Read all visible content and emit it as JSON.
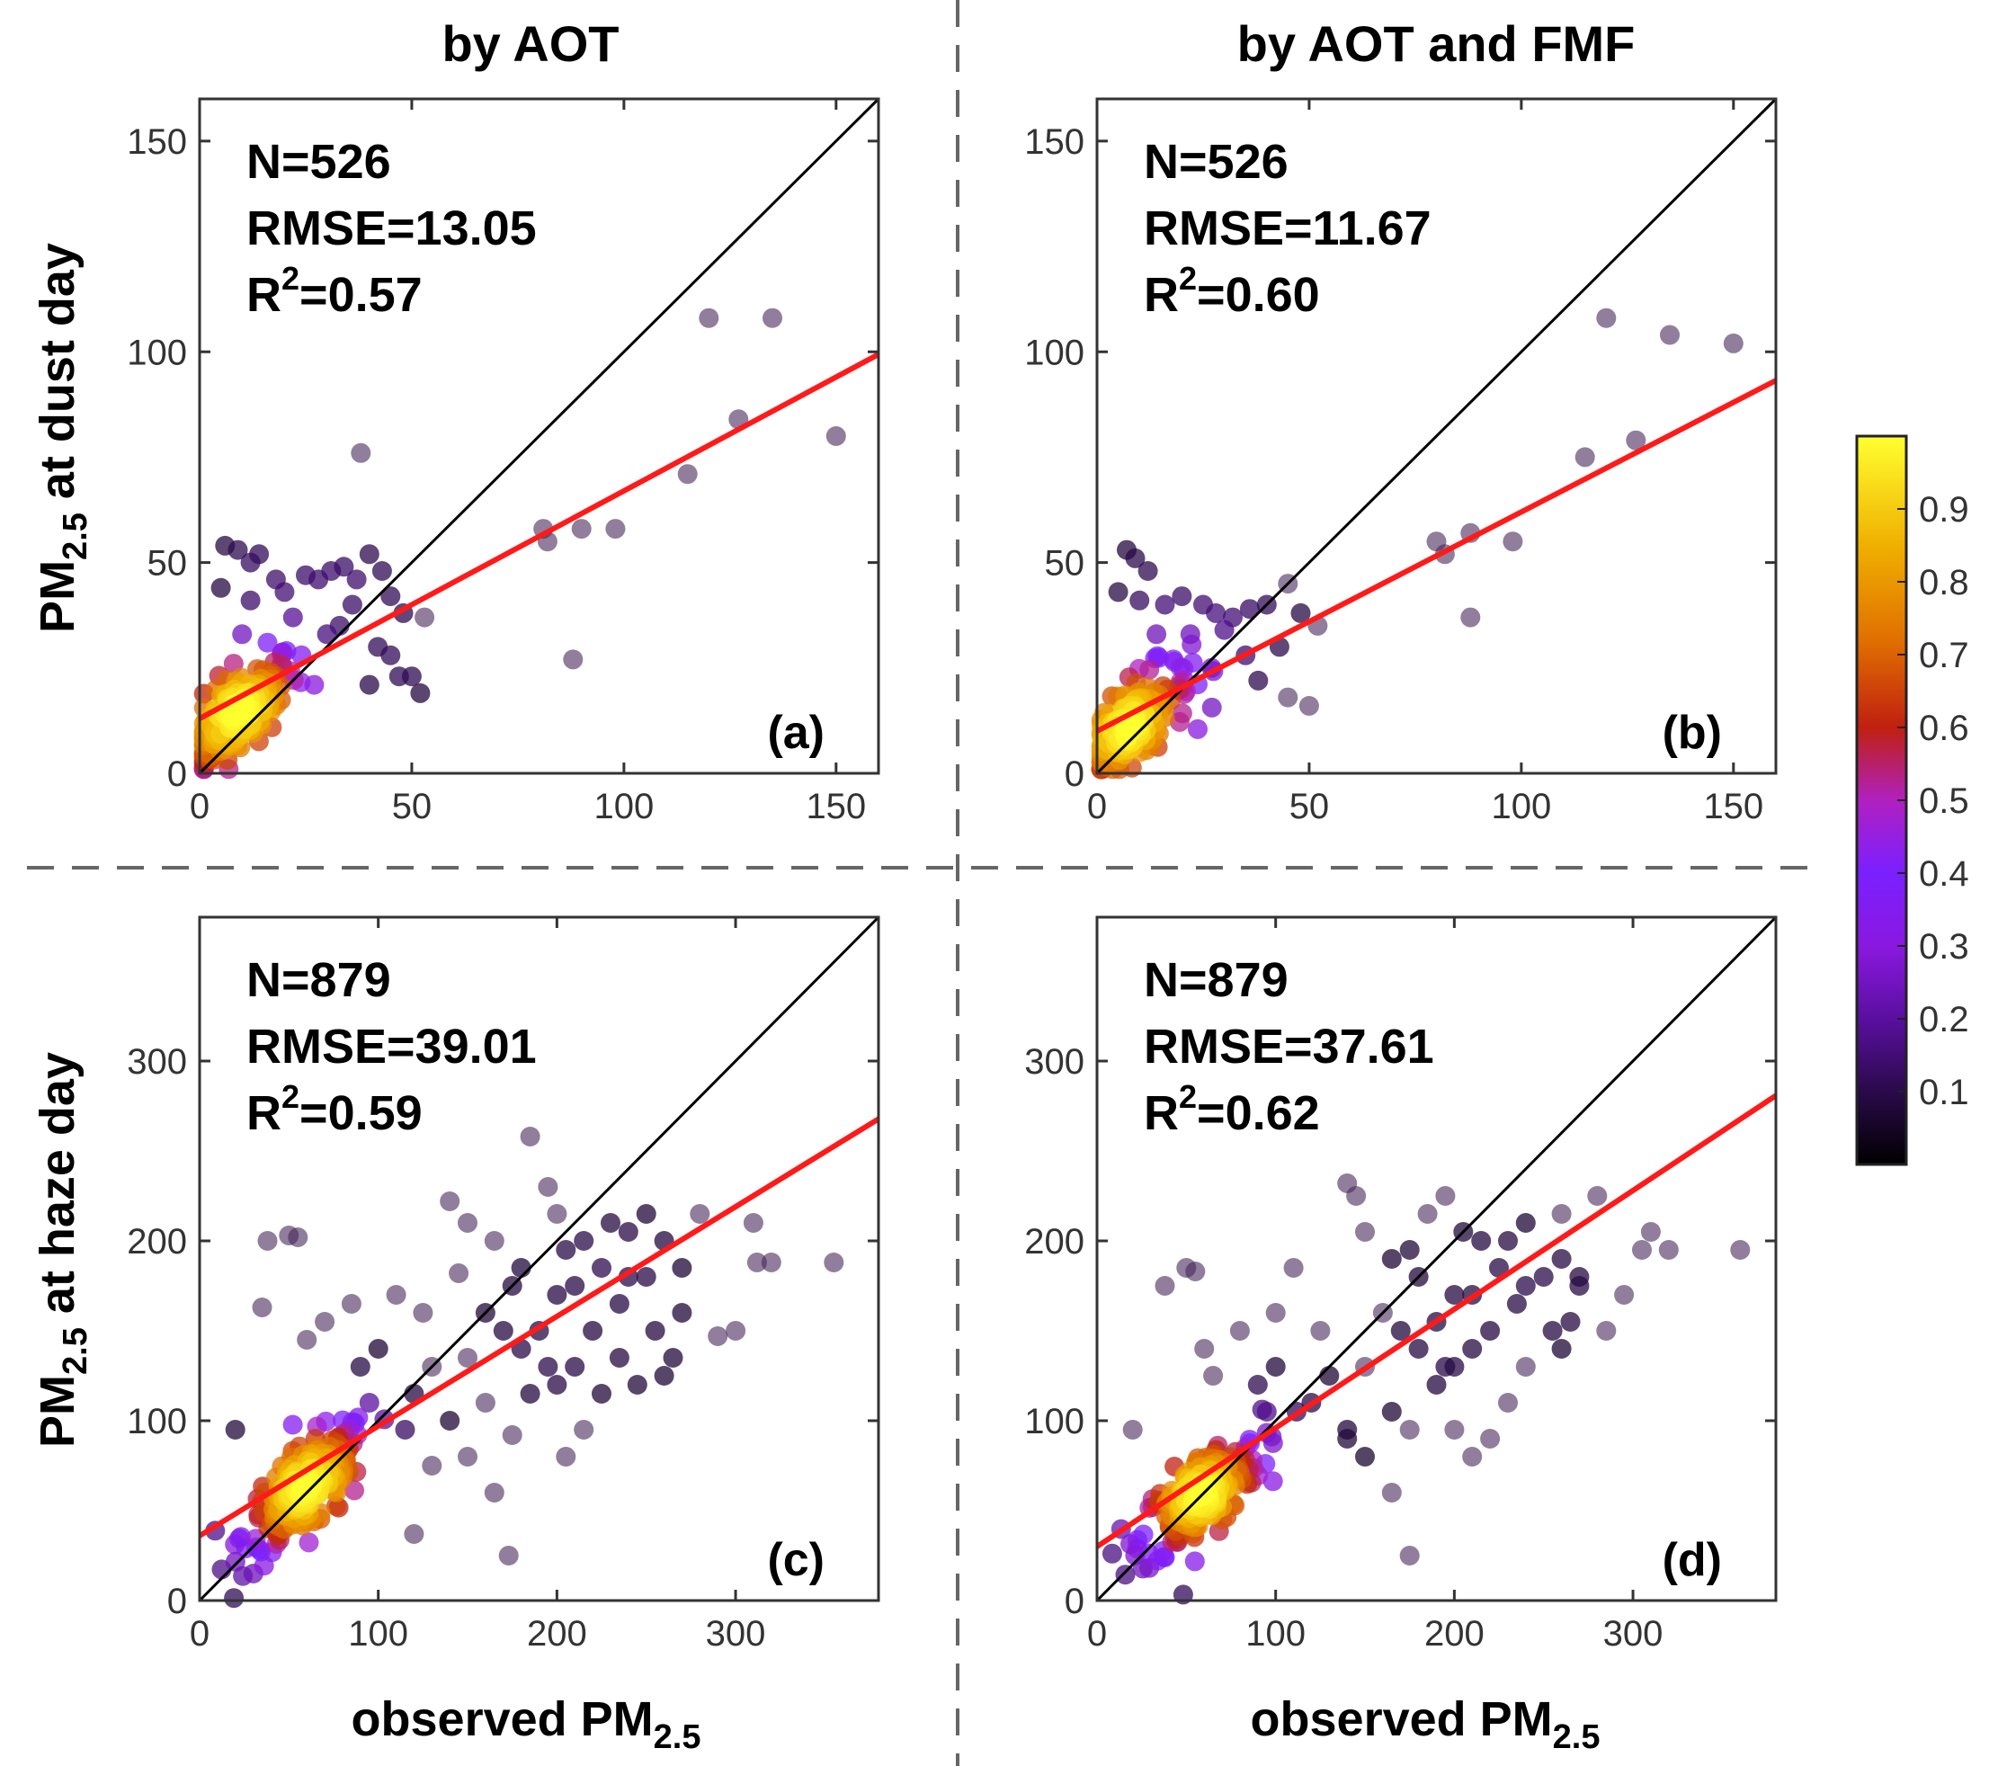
{
  "column_titles": [
    "by AOT",
    "by AOT and FMF"
  ],
  "row_labels": [
    {
      "prefix": "PM",
      "sub": "2.5",
      "suffix": " at dust day"
    },
    {
      "prefix": "PM",
      "sub": "2.5",
      "suffix": " at haze day"
    }
  ],
  "xlabel": {
    "prefix": "observed PM",
    "sub": "2.5"
  },
  "colorbar": {
    "ticks": [
      "0.9",
      "0.8",
      "0.7",
      "0.6",
      "0.5",
      "0.4",
      "0.3",
      "0.2",
      "0.1"
    ],
    "tick_values": [
      0.9,
      0.8,
      0.7,
      0.6,
      0.5,
      0.4,
      0.3,
      0.2,
      0.1
    ],
    "range": [
      0,
      1
    ],
    "colors": [
      "#000000",
      "#2a0a4a",
      "#5a0fa0",
      "#8a18e0",
      "#7a20ff",
      "#b020c0",
      "#c02010",
      "#e07000",
      "#f0b000",
      "#ffff30"
    ]
  },
  "colors": {
    "one_to_one": "#000000",
    "fit": "#ff1a1a"
  },
  "chart_data": [
    {
      "panel": "(a)",
      "type": "scatter",
      "stats": {
        "n": "N=526",
        "rmse": "RMSE=13.05",
        "r2_prefix": "R",
        "r2_exp": "2",
        "r2_suffix": "=0.57"
      },
      "xlim": [
        0,
        160
      ],
      "ylim": [
        0,
        160
      ],
      "xticks": [
        0,
        50,
        100,
        150
      ],
      "xtick_labels": [
        "0",
        "50",
        "100",
        "150"
      ],
      "yticks": [
        0,
        50,
        100,
        150
      ],
      "ytick_labels": [
        "0",
        "50",
        "100",
        "150"
      ],
      "fit": {
        "intercept": 13.0,
        "slope": 0.54
      },
      "cluster": {
        "n": 160,
        "center": [
          9,
          14
        ],
        "spread": [
          7,
          7
        ]
      },
      "points": [
        [
          6,
          54
        ],
        [
          9,
          53
        ],
        [
          12,
          50
        ],
        [
          14,
          52
        ],
        [
          18,
          46
        ],
        [
          5,
          44
        ],
        [
          12,
          41
        ],
        [
          20,
          43
        ],
        [
          25,
          47
        ],
        [
          28,
          46
        ],
        [
          31,
          48
        ],
        [
          34,
          49
        ],
        [
          37,
          46
        ],
        [
          40,
          52
        ],
        [
          43,
          48
        ],
        [
          45,
          42
        ],
        [
          48,
          38
        ],
        [
          53,
          37
        ],
        [
          47,
          23
        ],
        [
          52,
          19
        ],
        [
          38,
          76
        ],
        [
          36,
          40
        ],
        [
          30,
          33
        ],
        [
          42,
          30
        ],
        [
          27,
          21
        ],
        [
          40,
          21
        ],
        [
          33,
          35
        ],
        [
          22,
          37
        ],
        [
          16,
          31
        ],
        [
          10,
          33
        ],
        [
          8,
          26
        ],
        [
          24,
          28
        ],
        [
          45,
          28
        ],
        [
          50,
          23
        ],
        [
          81,
          58
        ],
        [
          82,
          55
        ],
        [
          90,
          58
        ],
        [
          98,
          58
        ],
        [
          88,
          27
        ],
        [
          115,
          71
        ],
        [
          120,
          108
        ],
        [
          127,
          84
        ],
        [
          135,
          108
        ],
        [
          150,
          80
        ]
      ]
    },
    {
      "panel": "(b)",
      "type": "scatter",
      "stats": {
        "n": "N=526",
        "rmse": "RMSE=11.67",
        "r2_prefix": "R",
        "r2_exp": "2",
        "r2_suffix": "=0.60"
      },
      "xlim": [
        0,
        160
      ],
      "ylim": [
        0,
        160
      ],
      "xticks": [
        0,
        50,
        100,
        150
      ],
      "xtick_labels": [
        "0",
        "50",
        "100",
        "150"
      ],
      "yticks": [
        0,
        50,
        100,
        150
      ],
      "ytick_labels": [
        "0",
        "50",
        "100",
        "150"
      ],
      "fit": {
        "intercept": 10.0,
        "slope": 0.52
      },
      "cluster": {
        "n": 160,
        "center": [
          8,
          12
        ],
        "spread": [
          7,
          7
        ]
      },
      "points": [
        [
          7,
          53
        ],
        [
          9,
          51
        ],
        [
          12,
          48
        ],
        [
          5,
          43
        ],
        [
          10,
          41
        ],
        [
          16,
          40
        ],
        [
          20,
          42
        ],
        [
          25,
          40
        ],
        [
          28,
          38
        ],
        [
          32,
          37
        ],
        [
          36,
          39
        ],
        [
          40,
          40
        ],
        [
          45,
          45
        ],
        [
          48,
          38
        ],
        [
          52,
          35
        ],
        [
          50,
          16
        ],
        [
          45,
          18
        ],
        [
          38,
          22
        ],
        [
          30,
          34
        ],
        [
          22,
          33
        ],
        [
          14,
          33
        ],
        [
          18,
          27
        ],
        [
          35,
          28
        ],
        [
          43,
          30
        ],
        [
          27,
          25
        ],
        [
          80,
          55
        ],
        [
          82,
          52
        ],
        [
          88,
          57
        ],
        [
          98,
          55
        ],
        [
          88,
          37
        ],
        [
          115,
          75
        ],
        [
          120,
          108
        ],
        [
          127,
          79
        ],
        [
          135,
          104
        ],
        [
          150,
          102
        ]
      ]
    },
    {
      "panel": "(c)",
      "type": "scatter",
      "stats": {
        "n": "N=879",
        "rmse": "RMSE=39.01",
        "r2_prefix": "R",
        "r2_exp": "2",
        "r2_suffix": "=0.59"
      },
      "xlim": [
        0,
        380
      ],
      "ylim": [
        0,
        380
      ],
      "xticks": [
        0,
        100,
        200,
        300
      ],
      "xtick_labels": [
        "0",
        "100",
        "200",
        "300"
      ],
      "yticks": [
        0,
        100,
        200,
        300
      ],
      "ytick_labels": [
        "0",
        "100",
        "200",
        "300"
      ],
      "fit": {
        "intercept": 36.0,
        "slope": 0.61
      },
      "cluster": {
        "n": 200,
        "center": [
          60,
          62
        ],
        "spread": [
          18,
          18
        ]
      },
      "points": [
        [
          20,
          95
        ],
        [
          35,
          163
        ],
        [
          38,
          200
        ],
        [
          50,
          203
        ],
        [
          55,
          202
        ],
        [
          60,
          145
        ],
        [
          70,
          155
        ],
        [
          85,
          165
        ],
        [
          110,
          170
        ],
        [
          140,
          222
        ],
        [
          145,
          182
        ],
        [
          150,
          210
        ],
        [
          165,
          200
        ],
        [
          175,
          175
        ],
        [
          185,
          258
        ],
        [
          195,
          230
        ],
        [
          200,
          215
        ],
        [
          205,
          195
        ],
        [
          215,
          200
        ],
        [
          225,
          185
        ],
        [
          235,
          165
        ],
        [
          240,
          205
        ],
        [
          250,
          180
        ],
        [
          255,
          150
        ],
        [
          260,
          125
        ],
        [
          265,
          135
        ],
        [
          270,
          160
        ],
        [
          280,
          215
        ],
        [
          250,
          215
        ],
        [
          220,
          150
        ],
        [
          210,
          130
        ],
        [
          200,
          120
        ],
        [
          185,
          115
        ],
        [
          175,
          92
        ],
        [
          160,
          110
        ],
        [
          150,
          135
        ],
        [
          130,
          130
        ],
        [
          120,
          115
        ],
        [
          115,
          95
        ],
        [
          165,
          60
        ],
        [
          173,
          25
        ],
        [
          120,
          37
        ],
        [
          205,
          80
        ],
        [
          215,
          95
        ],
        [
          225,
          115
        ],
        [
          235,
          135
        ],
        [
          245,
          120
        ],
        [
          290,
          147
        ],
        [
          300,
          150
        ],
        [
          310,
          210
        ],
        [
          312,
          188
        ],
        [
          320,
          188
        ],
        [
          355,
          188
        ],
        [
          200,
          170
        ],
        [
          180,
          185
        ],
        [
          170,
          150
        ],
        [
          160,
          160
        ],
        [
          230,
          210
        ],
        [
          260,
          200
        ],
        [
          90,
          130
        ],
        [
          100,
          140
        ],
        [
          125,
          160
        ],
        [
          95,
          110
        ],
        [
          140,
          100
        ],
        [
          150,
          80
        ],
        [
          130,
          75
        ],
        [
          180,
          140
        ],
        [
          190,
          150
        ],
        [
          240,
          180
        ],
        [
          210,
          175
        ],
        [
          270,
          185
        ],
        [
          195,
          130
        ]
      ]
    },
    {
      "panel": "(d)",
      "type": "scatter",
      "stats": {
        "n": "N=879",
        "rmse": "RMSE=37.61",
        "r2_prefix": "R",
        "r2_exp": "2",
        "r2_suffix": "=0.62"
      },
      "xlim": [
        0,
        380
      ],
      "ylim": [
        0,
        380
      ],
      "xticks": [
        0,
        100,
        200,
        300
      ],
      "xtick_labels": [
        "0",
        "100",
        "200",
        "300"
      ],
      "yticks": [
        0,
        100,
        200,
        300
      ],
      "ytick_labels": [
        "0",
        "100",
        "200",
        "300"
      ],
      "fit": {
        "intercept": 30.0,
        "slope": 0.66
      },
      "cluster": {
        "n": 200,
        "center": [
          58,
          58
        ],
        "spread": [
          17,
          17
        ]
      },
      "points": [
        [
          20,
          95
        ],
        [
          38,
          175
        ],
        [
          50,
          185
        ],
        [
          55,
          183
        ],
        [
          60,
          140
        ],
        [
          65,
          125
        ],
        [
          80,
          150
        ],
        [
          100,
          160
        ],
        [
          110,
          185
        ],
        [
          140,
          232
        ],
        [
          145,
          225
        ],
        [
          150,
          205
        ],
        [
          165,
          190
        ],
        [
          175,
          195
        ],
        [
          185,
          215
        ],
        [
          195,
          225
        ],
        [
          205,
          205
        ],
        [
          215,
          200
        ],
        [
          225,
          185
        ],
        [
          235,
          165
        ],
        [
          240,
          210
        ],
        [
          250,
          180
        ],
        [
          255,
          150
        ],
        [
          260,
          140
        ],
        [
          265,
          155
        ],
        [
          270,
          175
        ],
        [
          280,
          225
        ],
        [
          260,
          215
        ],
        [
          220,
          150
        ],
        [
          210,
          140
        ],
        [
          200,
          130
        ],
        [
          190,
          120
        ],
        [
          175,
          95
        ],
        [
          165,
          105
        ],
        [
          150,
          130
        ],
        [
          130,
          125
        ],
        [
          120,
          110
        ],
        [
          165,
          60
        ],
        [
          175,
          25
        ],
        [
          140,
          95
        ],
        [
          200,
          95
        ],
        [
          210,
          80
        ],
        [
          220,
          90
        ],
        [
          230,
          110
        ],
        [
          240,
          130
        ],
        [
          285,
          150
        ],
        [
          295,
          170
        ],
        [
          305,
          195
        ],
        [
          310,
          205
        ],
        [
          320,
          195
        ],
        [
          360,
          195
        ],
        [
          200,
          170
        ],
        [
          180,
          180
        ],
        [
          170,
          150
        ],
        [
          160,
          160
        ],
        [
          230,
          200
        ],
        [
          260,
          190
        ],
        [
          90,
          120
        ],
        [
          100,
          130
        ],
        [
          125,
          150
        ],
        [
          95,
          105
        ],
        [
          140,
          90
        ],
        [
          150,
          80
        ],
        [
          180,
          140
        ],
        [
          190,
          155
        ],
        [
          240,
          175
        ],
        [
          210,
          170
        ],
        [
          270,
          180
        ],
        [
          195,
          130
        ]
      ]
    }
  ]
}
